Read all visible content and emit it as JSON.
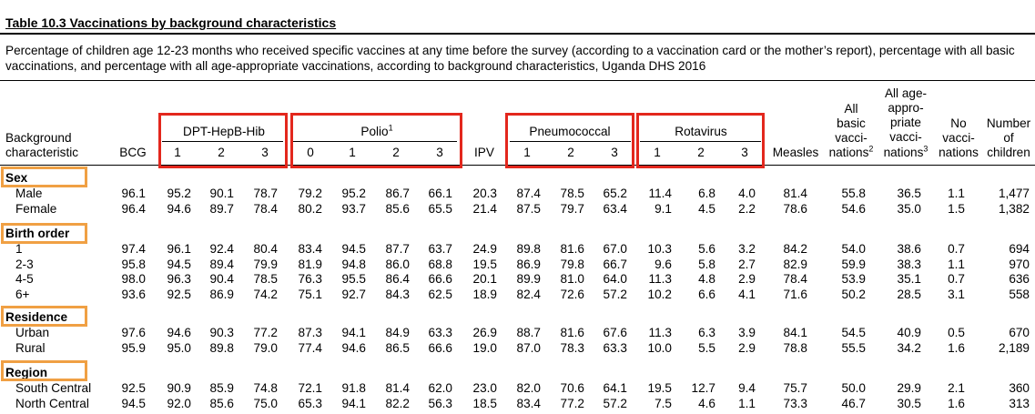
{
  "title": "Table 10.3  Vaccinations by background characteristics",
  "description": "Percentage of children age 12-23 months who received specific vaccines at any time before the survey (according to a vaccination card or the mother’s report), percentage with all basic vaccinations, and percentage with all age-appropriate vaccinations, according to background characteristics, Uganda DHS 2016",
  "header": {
    "row_label_line1": "Background",
    "row_label_line2": "characteristic",
    "groups": {
      "dpt": "DPT-HepB-Hib",
      "polio": "Polio",
      "polio_sup": "1",
      "pneumococcal": "Pneumococcal",
      "rotavirus": "Rotavirus"
    },
    "bcg": "BCG",
    "ipv": "IPV",
    "measles": "Measles",
    "dpt_doses": [
      "1",
      "2",
      "3"
    ],
    "polio_doses": [
      "0",
      "1",
      "2",
      "3"
    ],
    "pneumo_doses": [
      "1",
      "2",
      "3"
    ],
    "rota_doses": [
      "1",
      "2",
      "3"
    ],
    "all_basic": [
      "All",
      "basic",
      "vacci-",
      "nations"
    ],
    "all_basic_sup": "2",
    "all_age": [
      "All age-",
      "appro-",
      "priate",
      "vacci-",
      "nations"
    ],
    "all_age_sup": "3",
    "no_vacc": [
      "No",
      "vacci-",
      "nations"
    ],
    "number": [
      "Number",
      "of",
      "children"
    ]
  },
  "sections": [
    {
      "name": "Sex",
      "rows": [
        {
          "label": "Male",
          "values": [
            "96.1",
            "95.2",
            "90.1",
            "78.7",
            "79.2",
            "95.2",
            "86.7",
            "66.1",
            "20.3",
            "87.4",
            "78.5",
            "65.2",
            "11.4",
            "6.8",
            "4.0",
            "81.4",
            "55.8",
            "36.5",
            "1.1",
            "1,477"
          ]
        },
        {
          "label": "Female",
          "values": [
            "96.4",
            "94.6",
            "89.7",
            "78.4",
            "80.2",
            "93.7",
            "85.6",
            "65.5",
            "21.4",
            "87.5",
            "79.7",
            "63.4",
            "9.1",
            "4.5",
            "2.2",
            "78.6",
            "54.6",
            "35.0",
            "1.5",
            "1,382"
          ]
        }
      ]
    },
    {
      "name": "Birth order",
      "rows": [
        {
          "label": "1",
          "values": [
            "97.4",
            "96.1",
            "92.4",
            "80.4",
            "83.4",
            "94.5",
            "87.7",
            "63.7",
            "24.9",
            "89.8",
            "81.6",
            "67.0",
            "10.3",
            "5.6",
            "3.2",
            "84.2",
            "54.0",
            "38.6",
            "0.7",
            "694"
          ]
        },
        {
          "label": "2-3",
          "values": [
            "95.8",
            "94.5",
            "89.4",
            "79.9",
            "81.9",
            "94.8",
            "86.0",
            "68.8",
            "19.5",
            "86.9",
            "79.8",
            "66.7",
            "9.6",
            "5.8",
            "2.7",
            "82.9",
            "59.9",
            "38.3",
            "1.1",
            "970"
          ]
        },
        {
          "label": "4-5",
          "values": [
            "98.0",
            "96.3",
            "90.4",
            "78.5",
            "76.3",
            "95.5",
            "86.4",
            "66.6",
            "20.1",
            "89.9",
            "81.0",
            "64.0",
            "11.3",
            "4.8",
            "2.9",
            "78.4",
            "53.9",
            "35.1",
            "0.7",
            "636"
          ]
        },
        {
          "label": "6+",
          "values": [
            "93.6",
            "92.5",
            "86.9",
            "74.2",
            "75.1",
            "92.7",
            "84.3",
            "62.5",
            "18.9",
            "82.4",
            "72.6",
            "57.2",
            "10.2",
            "6.6",
            "4.1",
            "71.6",
            "50.2",
            "28.5",
            "3.1",
            "558"
          ]
        }
      ]
    },
    {
      "name": "Residence",
      "rows": [
        {
          "label": "Urban",
          "values": [
            "97.6",
            "94.6",
            "90.3",
            "77.2",
            "87.3",
            "94.1",
            "84.9",
            "63.3",
            "26.9",
            "88.7",
            "81.6",
            "67.6",
            "11.3",
            "6.3",
            "3.9",
            "84.1",
            "54.5",
            "40.9",
            "0.5",
            "670"
          ]
        },
        {
          "label": "Rural",
          "values": [
            "95.9",
            "95.0",
            "89.8",
            "79.0",
            "77.4",
            "94.6",
            "86.5",
            "66.6",
            "19.0",
            "87.0",
            "78.3",
            "63.3",
            "10.0",
            "5.5",
            "2.9",
            "78.8",
            "55.5",
            "34.2",
            "1.6",
            "2,189"
          ]
        }
      ]
    },
    {
      "name": "Region",
      "rows": [
        {
          "label": "South Central",
          "values": [
            "92.5",
            "90.9",
            "85.9",
            "74.8",
            "72.1",
            "91.8",
            "81.4",
            "62.0",
            "23.0",
            "82.0",
            "70.6",
            "64.1",
            "19.5",
            "12.7",
            "9.4",
            "75.7",
            "50.0",
            "29.9",
            "2.1",
            "360"
          ]
        },
        {
          "label": "North Central",
          "values": [
            "94.5",
            "92.0",
            "85.6",
            "75.0",
            "65.3",
            "94.1",
            "82.2",
            "56.3",
            "18.5",
            "83.4",
            "77.2",
            "57.2",
            "7.5",
            "4.6",
            "1.1",
            "73.3",
            "46.7",
            "30.5",
            "1.6",
            "313"
          ]
        }
      ]
    }
  ],
  "colors": {
    "highlight_red": "#e3271d",
    "highlight_orange": "#f0a044"
  }
}
